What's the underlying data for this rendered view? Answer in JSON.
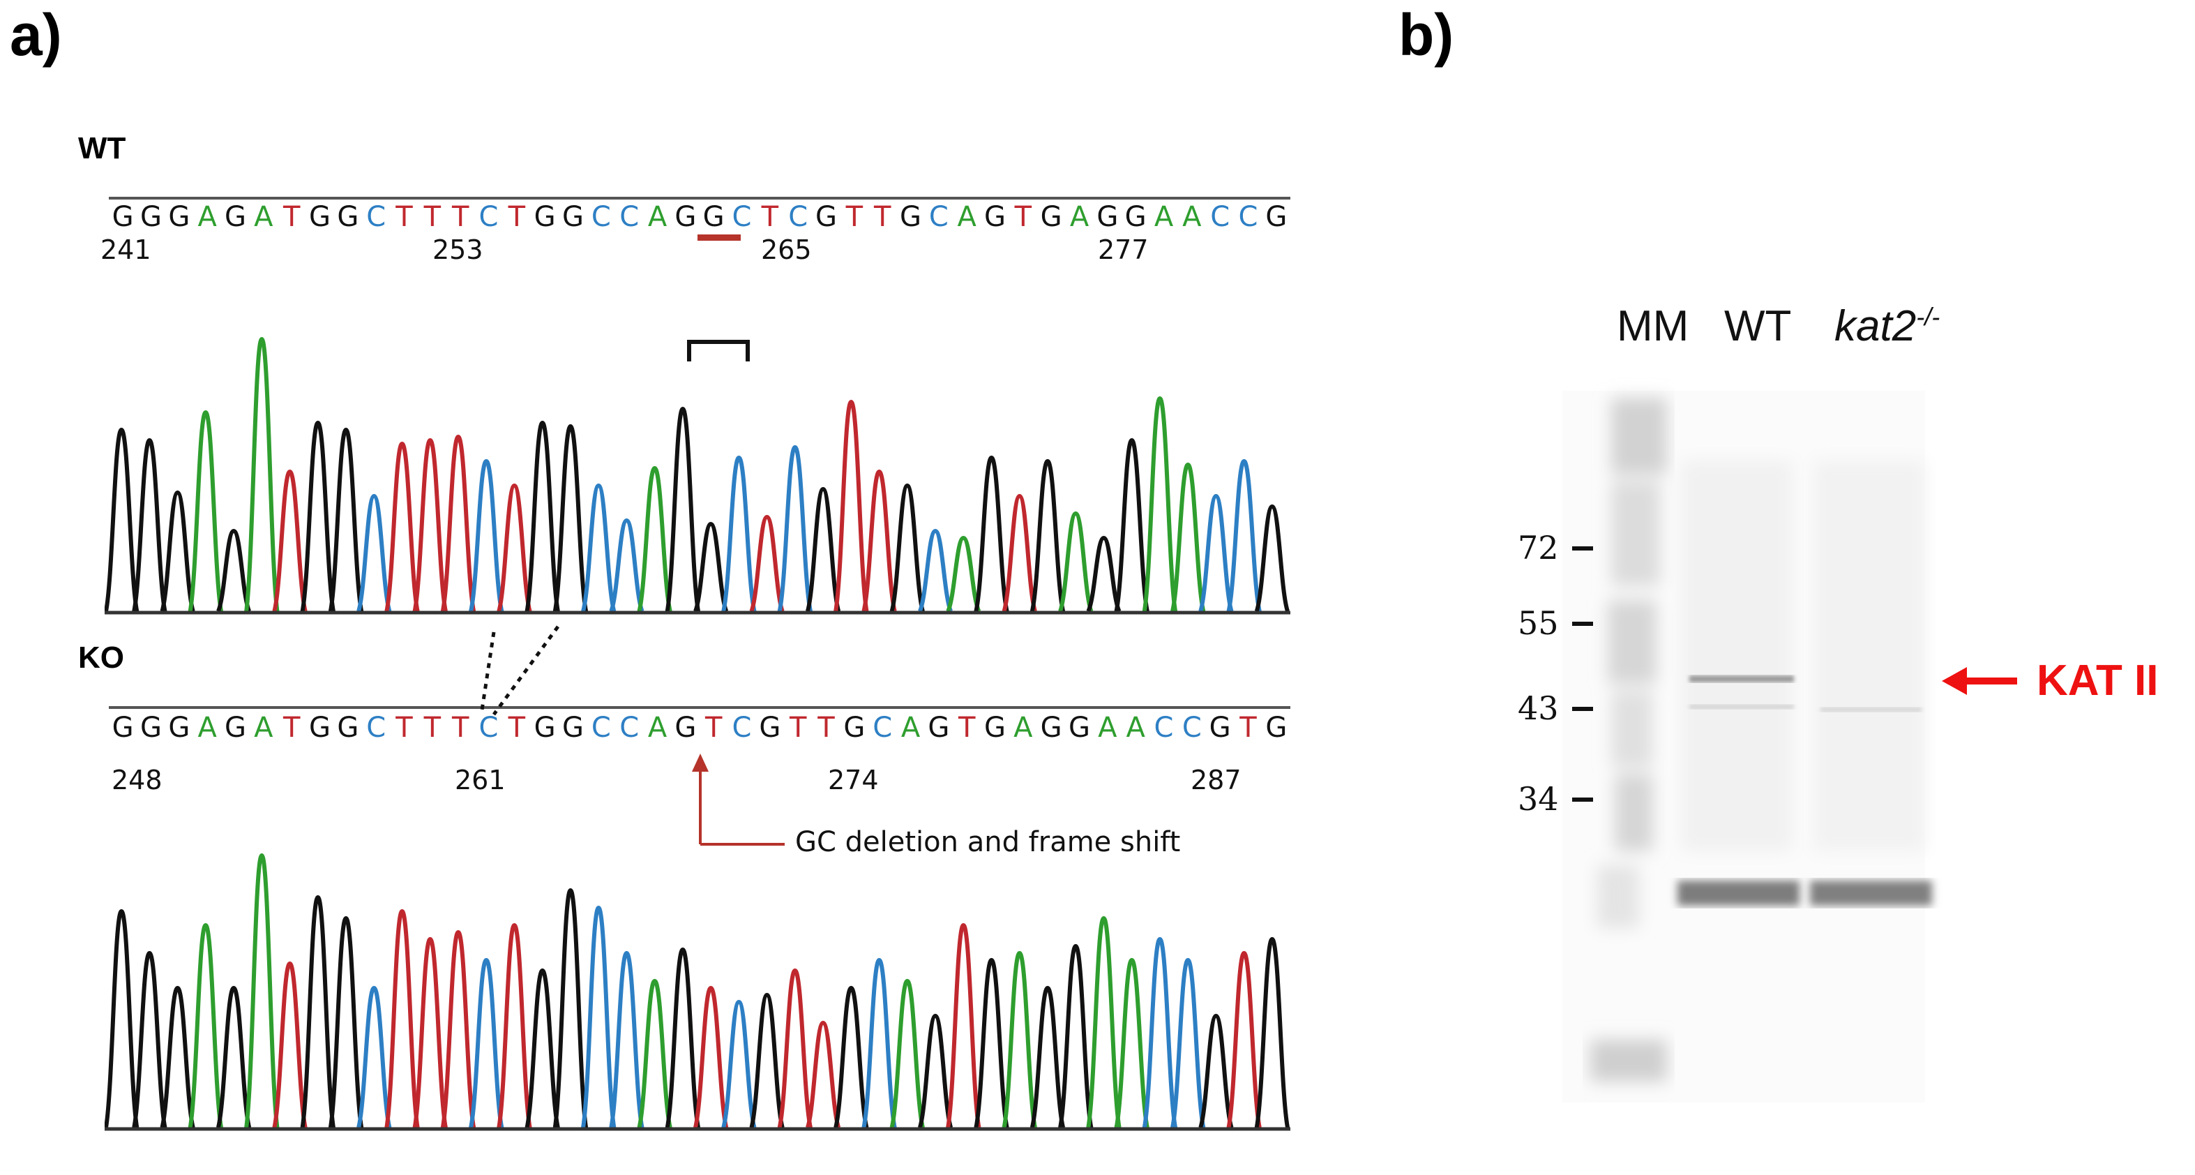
{
  "panels": {
    "a_label": "a)",
    "b_label": "b)"
  },
  "colors": {
    "A": "#2e9e2e",
    "T": "#c0282e",
    "C": "#2d7fc4",
    "G": "#111111",
    "annotation_red": "#b5332a",
    "kat_red": "#ee1111"
  },
  "wt": {
    "label": "WT",
    "sequence": "GGGAGATGGCTTTCTGGCCAGGCTCGTTGCAGTGAGGAACCG",
    "positions": [
      "241",
      "253",
      "265",
      "277"
    ]
  },
  "ko": {
    "label": "KO",
    "sequence": "GGGAGATGGCTTTCTGGCCAGTCGTTGCAGTGAGGAACCGTG",
    "positions": [
      "248",
      "261",
      "274",
      "287"
    ],
    "annotation": "GC deletion and frame shift"
  },
  "blot": {
    "lanes": [
      "MM",
      "WT"
    ],
    "lane3_main": "kat2",
    "lane3_sup": "-/-",
    "markers": [
      "72",
      "55",
      "43",
      "34"
    ],
    "target": "KAT II"
  }
}
